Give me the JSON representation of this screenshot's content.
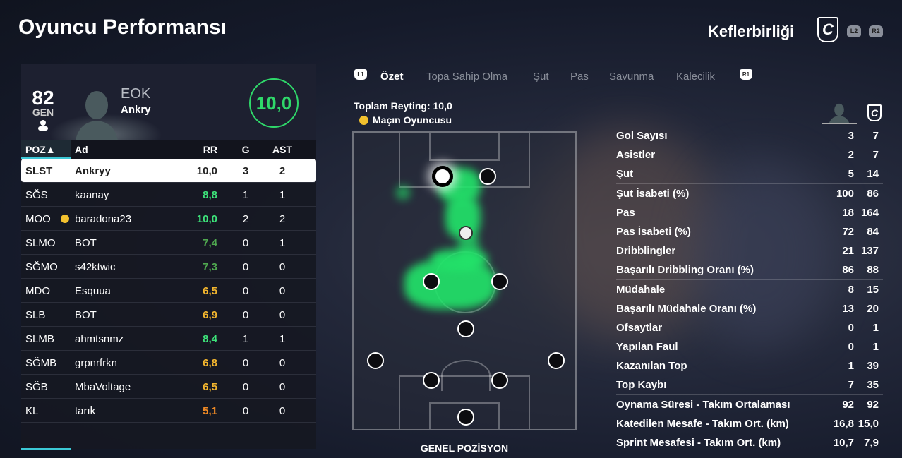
{
  "title": "Oyuncu Performansı",
  "team": "Keflerbirliği",
  "team_crest_letter": "C",
  "triggers": {
    "l2": "L2",
    "r2": "R2"
  },
  "player_card": {
    "overall": "82",
    "overall_label": "GEN",
    "position": "EOK",
    "name": "Ankry",
    "rating": "10,0"
  },
  "table": {
    "headers": [
      "POZ▲",
      "Ad",
      "RR",
      "G",
      "AST"
    ],
    "rows": [
      {
        "poz": "SLST",
        "name": "Ankryy",
        "rr": "10,0",
        "g": "3",
        "ast": "2",
        "selected": true,
        "rr_color": "#222222"
      },
      {
        "poz": "SĞS",
        "name": "kaanay",
        "rr": "8,8",
        "g": "1",
        "ast": "1",
        "rr_color": "#3de37a"
      },
      {
        "poz": "MOO",
        "name": "baradona23",
        "rr": "10,0",
        "g": "2",
        "ast": "2",
        "motm": true,
        "rr_color": "#3de37a"
      },
      {
        "poz": "SLMO",
        "name": "BOT",
        "rr": "7,4",
        "g": "0",
        "ast": "1",
        "rr_color": "#4fa84f"
      },
      {
        "poz": "SĞMO",
        "name": "s42ktwic",
        "rr": "7,3",
        "g": "0",
        "ast": "0",
        "rr_color": "#4fa84f"
      },
      {
        "poz": "MDO",
        "name": "Esquua",
        "rr": "6,5",
        "g": "0",
        "ast": "0",
        "rr_color": "#f2b52e"
      },
      {
        "poz": "SLB",
        "name": "BOT",
        "rr": "6,9",
        "g": "0",
        "ast": "0",
        "rr_color": "#f2b52e"
      },
      {
        "poz": "SLMB",
        "name": "ahmtsnmz",
        "rr": "8,4",
        "g": "1",
        "ast": "1",
        "rr_color": "#3de37a"
      },
      {
        "poz": "SĞMB",
        "name": "grpnrfrkn",
        "rr": "6,8",
        "g": "0",
        "ast": "0",
        "rr_color": "#f2b52e"
      },
      {
        "poz": "SĞB",
        "name": "MbaVoltage",
        "rr": "6,5",
        "g": "0",
        "ast": "0",
        "rr_color": "#f2b52e"
      },
      {
        "poz": "KL",
        "name": "tarık",
        "rr": "5,1",
        "g": "0",
        "ast": "0",
        "rr_color": "#f08a24"
      }
    ]
  },
  "tabs": {
    "left_button": "L1",
    "right_button": "R1",
    "items": [
      "Özet",
      "Topa Sahip Olma",
      "Şut",
      "Pas",
      "Savunma",
      "Kalecilik"
    ],
    "active": 0
  },
  "summary": {
    "total_rating": "Toplam Reyting: 10,0",
    "motm": "Maçın Oyuncusu"
  },
  "pitch_label": "GENEL POZİSYON",
  "stats": [
    {
      "label": "Gol Sayısı",
      "player": "3",
      "team": "7"
    },
    {
      "label": "Asistler",
      "player": "2",
      "team": "7"
    },
    {
      "label": "Şut",
      "player": "5",
      "team": "14"
    },
    {
      "label": "Şut İsabeti (%)",
      "player": "100",
      "team": "86"
    },
    {
      "label": "Pas",
      "player": "18",
      "team": "164"
    },
    {
      "label": "Pas İsabeti (%)",
      "player": "72",
      "team": "84"
    },
    {
      "label": "Dribblingler",
      "player": "21",
      "team": "137"
    },
    {
      "label": "Başarılı Dribbling Oranı (%)",
      "player": "86",
      "team": "88"
    },
    {
      "label": "Müdahale",
      "player": "8",
      "team": "15"
    },
    {
      "label": "Başarılı Müdahale Oranı (%)",
      "player": "13",
      "team": "20"
    },
    {
      "label": "Ofsaytlar",
      "player": "0",
      "team": "1"
    },
    {
      "label": "Yapılan Faul",
      "player": "0",
      "team": "1"
    },
    {
      "label": "Kazanılan Top",
      "player": "1",
      "team": "39"
    },
    {
      "label": "Top Kaybı",
      "player": "7",
      "team": "35"
    },
    {
      "label": "Oynama Süresi - Takım Ortalaması",
      "player": "92",
      "team": "92"
    },
    {
      "label": "Katedilen Mesafe - Takım Ort. (km)",
      "player": "16,8",
      "team": "15,0"
    },
    {
      "label": "Sprint Mesafesi - Takım Ort. (km)",
      "player": "10,7",
      "team": "7,9"
    }
  ],
  "colors": {
    "accent": "#3cc9d6",
    "rating_ring": "#2fd86a",
    "heatmap": "#22e56a",
    "motm": "#f2c12e"
  }
}
